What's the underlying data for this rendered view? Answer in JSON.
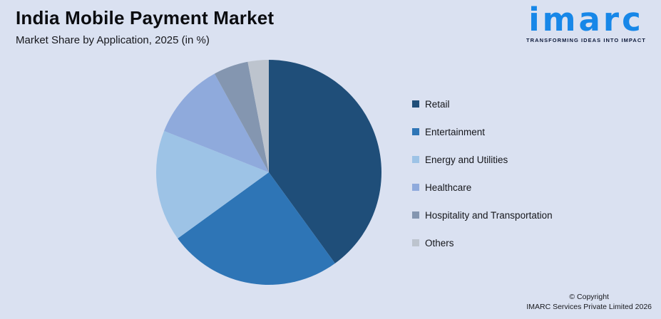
{
  "page": {
    "background": "#DAE1F1"
  },
  "header": {
    "title": "India Mobile Payment Market",
    "subtitle": "Market Share by Application, 2025 (in %)"
  },
  "logo": {
    "word": "imarc",
    "tagline": "TRANSFORMING IDEAS INTO IMPACT",
    "brand_color": "#1787E8",
    "tagline_color": "#0E1A3A"
  },
  "chart_data": {
    "type": "pie",
    "title": "India Mobile Payment Market",
    "subtitle": "Market Share by Application, 2025 (in %)",
    "units": "%",
    "start_angle_deg_from_12_oclock": 0,
    "direction": "clockwise",
    "legend_position": "right",
    "data_labels_shown": false,
    "segments": [
      {
        "label": "Retail",
        "value": 40,
        "color": "#1F4E79"
      },
      {
        "label": "Entertainment",
        "value": 25,
        "color": "#2E75B6"
      },
      {
        "label": "Energy and Utilities",
        "value": 16,
        "color": "#9DC3E6"
      },
      {
        "label": "Healthcare",
        "value": 11,
        "color": "#8FAADC"
      },
      {
        "label": "Hospitality and Transportation",
        "value": 5,
        "color": "#8496B0"
      },
      {
        "label": "Others",
        "value": 3,
        "color": "#BDC4CE"
      }
    ]
  },
  "footer": {
    "copyright_line1": "© Copyright",
    "copyright_line2": "IMARC Services Private Limited 2026"
  }
}
